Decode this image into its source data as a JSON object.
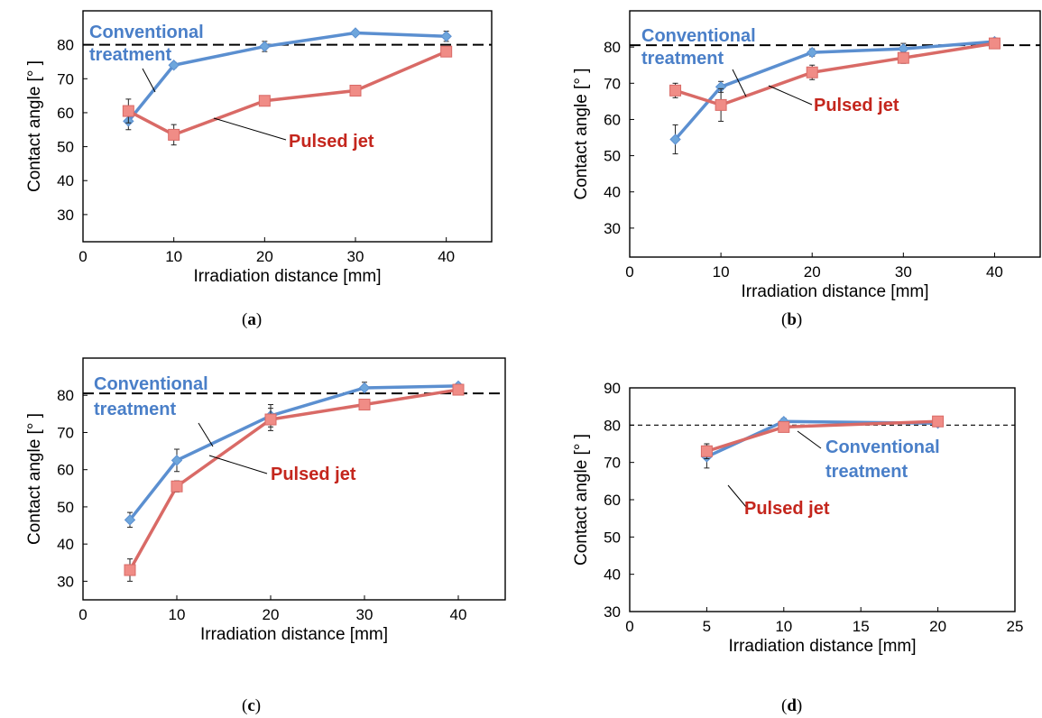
{
  "figure": {
    "captions": [
      "a",
      "b",
      "c",
      "d"
    ]
  },
  "colors": {
    "conventional": "#5b8fd0",
    "conventional_marker": "#6ea6dc",
    "pulsed": "#d96a66",
    "pulsed_marker": "#f08c86",
    "conventional_label": "#4a7fc8",
    "pulsed_label": "#c4261d"
  },
  "chart_data": [
    {
      "type": "line",
      "panel": "a",
      "xlabel": "Irradiation distance [mm]",
      "ylabel": "Contact angle [° ]",
      "xlim": [
        0,
        45
      ],
      "ylim": [
        22,
        90
      ],
      "xticks": [
        0,
        10,
        20,
        30,
        40
      ],
      "yticks": [
        30,
        40,
        50,
        60,
        70,
        80
      ],
      "reference_line": 80,
      "series": [
        {
          "name": "Conventional treatment",
          "x": [
            5,
            10,
            20,
            30,
            40
          ],
          "y": [
            57.5,
            74,
            79.5,
            83.5,
            82.5
          ],
          "err": [
            2.5,
            0.8,
            1.5,
            0.5,
            1.5
          ]
        },
        {
          "name": "Pulsed jet",
          "x": [
            5,
            10,
            20,
            30,
            40
          ],
          "y": [
            60.5,
            53.5,
            63.5,
            66.5,
            78
          ],
          "err": [
            3.5,
            3,
            1,
            0.5,
            1.5
          ]
        }
      ]
    },
    {
      "type": "line",
      "panel": "b",
      "xlabel": "Irradiation distance [mm]",
      "ylabel": "Contact angle [° ]",
      "xlim": [
        0,
        45
      ],
      "ylim": [
        22,
        90
      ],
      "xticks": [
        0,
        10,
        20,
        30,
        40
      ],
      "yticks": [
        30,
        40,
        50,
        60,
        70,
        80
      ],
      "reference_line": 80.5,
      "series": [
        {
          "name": "Conventional treatment",
          "x": [
            5,
            10,
            20,
            30,
            40
          ],
          "y": [
            54.5,
            69,
            78.5,
            79.5,
            81.5
          ],
          "err": [
            4,
            1.5,
            1,
            1.5,
            1
          ]
        },
        {
          "name": "Pulsed jet",
          "x": [
            5,
            10,
            20,
            30,
            40
          ],
          "y": [
            68,
            64,
            73,
            77,
            81
          ],
          "err": [
            2,
            4.5,
            2,
            1.5,
            1
          ]
        }
      ]
    },
    {
      "type": "line",
      "panel": "c",
      "xlabel": "Irradiation distance [mm]",
      "ylabel": "Contact angle [° ]",
      "xlim": [
        0,
        45
      ],
      "ylim": [
        25,
        90
      ],
      "xticks": [
        0,
        10,
        20,
        30,
        40
      ],
      "yticks": [
        30,
        40,
        50,
        60,
        70,
        80
      ],
      "reference_line": 80.5,
      "series": [
        {
          "name": "Conventional treatment",
          "x": [
            5,
            10,
            20,
            30,
            40
          ],
          "y": [
            46.5,
            62.5,
            74.5,
            82,
            82.5
          ],
          "err": [
            2,
            3,
            3,
            1.5,
            0.5
          ]
        },
        {
          "name": "Pulsed jet",
          "x": [
            5,
            10,
            20,
            30,
            40
          ],
          "y": [
            33,
            55.5,
            73.5,
            77.5,
            81.5
          ],
          "err": [
            3,
            1.5,
            3,
            1,
            1
          ]
        }
      ]
    },
    {
      "type": "line",
      "panel": "d",
      "xlabel": "Irradiation distance [mm]",
      "ylabel": "Contact angle [° ]",
      "xlim": [
        0,
        25
      ],
      "ylim": [
        30,
        90
      ],
      "xticks": [
        0,
        5,
        10,
        15,
        20,
        25
      ],
      "yticks": [
        30,
        40,
        50,
        60,
        70,
        80,
        90
      ],
      "reference_line": 80,
      "series": [
        {
          "name": "Conventional treatment",
          "x": [
            5,
            10,
            20
          ],
          "y": [
            71.5,
            81,
            80.5
          ],
          "err": [
            3,
            0.8,
            0.5
          ]
        },
        {
          "name": "Pulsed jet",
          "x": [
            5,
            10,
            20
          ],
          "y": [
            73,
            79.5,
            81
          ],
          "err": [
            2,
            0.8,
            0.5
          ]
        }
      ]
    }
  ],
  "labels": {
    "conventional": [
      "Conventional",
      "treatment"
    ],
    "pulsed": "Pulsed jet"
  }
}
